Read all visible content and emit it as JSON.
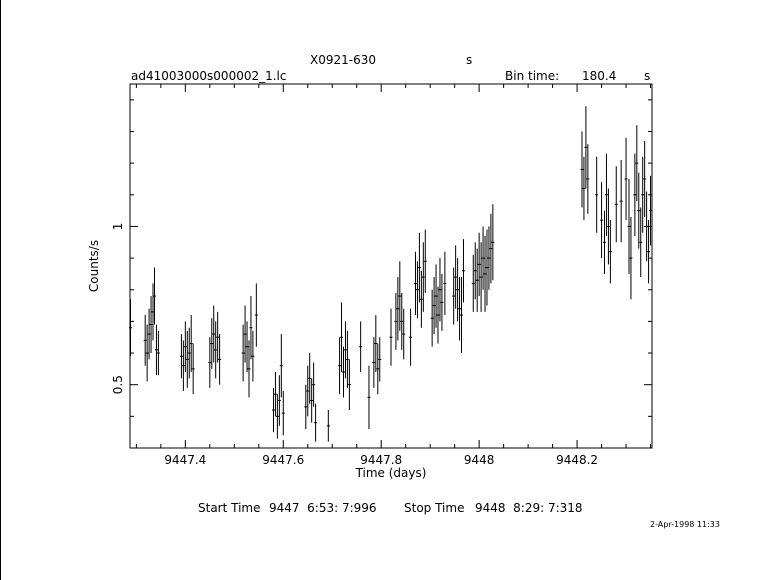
{
  "header": {
    "object": "X0921-630",
    "object_suffix": "s",
    "filename": "ad41003000s000002_1.lc",
    "bin_label": "Bin time:",
    "bin_value": "180.4",
    "bin_unit": "s"
  },
  "footer": {
    "start_label": "Start Time",
    "start_value": "9447  6:53: 7:996",
    "stop_label": "Stop Time",
    "stop_value": "9448  8:29: 7:318",
    "date_stamp": "2-Apr-1998 11:33"
  },
  "chart_data": {
    "type": "scatter",
    "title": "X0921-630",
    "xlabel": "Time (days)",
    "ylabel": "Counts/s",
    "xlim": [
      9447.287,
      9448.353
    ],
    "ylim": [
      0.3,
      1.45
    ],
    "x_ticks": [
      {
        "value": 9447.4,
        "label": "9447.4"
      },
      {
        "value": 9447.6,
        "label": "9447.6"
      },
      {
        "value": 9447.8,
        "label": "9447.8"
      },
      {
        "value": 9448.0,
        "label": "9448"
      },
      {
        "value": 9448.2,
        "label": "9448.2"
      }
    ],
    "y_ticks": [
      {
        "value": 0.5,
        "label": "0.5"
      },
      {
        "value": 1.0,
        "label": "1"
      }
    ],
    "series": [
      {
        "error_bars": true,
        "points": [
          [
            9447.288,
            0.68,
            0.09
          ],
          [
            9447.318,
            0.64,
            0.08
          ],
          [
            9447.322,
            0.6,
            0.09
          ],
          [
            9447.326,
            0.66,
            0.08
          ],
          [
            9447.33,
            0.69,
            0.09
          ],
          [
            9447.334,
            0.73,
            0.09
          ],
          [
            9447.337,
            0.78,
            0.09
          ],
          [
            9447.341,
            0.61,
            0.08
          ],
          [
            9447.345,
            0.6,
            0.07
          ],
          [
            9447.392,
            0.59,
            0.07
          ],
          [
            9447.396,
            0.56,
            0.08
          ],
          [
            9447.4,
            0.62,
            0.08
          ],
          [
            9447.404,
            0.58,
            0.09
          ],
          [
            9447.408,
            0.6,
            0.08
          ],
          [
            9447.412,
            0.63,
            0.09
          ],
          [
            9447.416,
            0.55,
            0.08
          ],
          [
            9447.45,
            0.57,
            0.08
          ],
          [
            9447.454,
            0.63,
            0.08
          ],
          [
            9447.458,
            0.66,
            0.09
          ],
          [
            9447.462,
            0.61,
            0.09
          ],
          [
            9447.466,
            0.65,
            0.08
          ],
          [
            9447.47,
            0.58,
            0.08
          ],
          [
            9447.518,
            0.6,
            0.09
          ],
          [
            9447.522,
            0.66,
            0.09
          ],
          [
            9447.526,
            0.62,
            0.08
          ],
          [
            9447.53,
            0.55,
            0.09
          ],
          [
            9447.534,
            0.68,
            0.1
          ],
          [
            9447.538,
            0.59,
            0.08
          ],
          [
            9447.545,
            0.72,
            0.1
          ],
          [
            9447.58,
            0.42,
            0.07
          ],
          [
            9447.584,
            0.47,
            0.07
          ],
          [
            9447.588,
            0.4,
            0.07
          ],
          [
            9447.592,
            0.45,
            0.08
          ],
          [
            9447.596,
            0.56,
            0.1
          ],
          [
            9447.6,
            0.41,
            0.07
          ],
          [
            9447.646,
            0.43,
            0.07
          ],
          [
            9447.65,
            0.48,
            0.08
          ],
          [
            9447.654,
            0.52,
            0.08
          ],
          [
            9447.658,
            0.45,
            0.07
          ],
          [
            9447.662,
            0.5,
            0.07
          ],
          [
            9447.666,
            0.38,
            0.06
          ],
          [
            9447.692,
            0.37,
            0.05
          ],
          [
            9447.715,
            0.56,
            0.09
          ],
          [
            9447.719,
            0.65,
            0.11
          ],
          [
            9447.723,
            0.54,
            0.08
          ],
          [
            9447.727,
            0.61,
            0.09
          ],
          [
            9447.731,
            0.58,
            0.09
          ],
          [
            9447.735,
            0.5,
            0.08
          ],
          [
            9447.758,
            0.62,
            0.08
          ],
          [
            9447.775,
            0.46,
            0.1
          ],
          [
            9447.785,
            0.57,
            0.08
          ],
          [
            9447.789,
            0.63,
            0.09
          ],
          [
            9447.793,
            0.55,
            0.08
          ],
          [
            9447.797,
            0.58,
            0.07
          ],
          [
            9447.82,
            0.65,
            0.09
          ],
          [
            9447.83,
            0.7,
            0.09
          ],
          [
            9447.834,
            0.74,
            0.1
          ],
          [
            9447.838,
            0.78,
            0.11
          ],
          [
            9447.842,
            0.7,
            0.09
          ],
          [
            9447.846,
            0.66,
            0.08
          ],
          [
            9447.86,
            0.65,
            0.09
          ],
          [
            9447.87,
            0.82,
            0.1
          ],
          [
            9447.874,
            0.8,
            0.09
          ],
          [
            9447.878,
            0.87,
            0.11
          ],
          [
            9447.882,
            0.77,
            0.09
          ],
          [
            9447.886,
            0.84,
            0.11
          ],
          [
            9447.89,
            0.89,
            0.1
          ],
          [
            9447.904,
            0.71,
            0.09
          ],
          [
            9447.908,
            0.75,
            0.09
          ],
          [
            9447.912,
            0.78,
            0.1
          ],
          [
            9447.916,
            0.72,
            0.09
          ],
          [
            9447.92,
            0.8,
            0.1
          ],
          [
            9447.924,
            0.76,
            0.09
          ],
          [
            9447.93,
            0.82,
            0.1
          ],
          [
            9447.948,
            0.78,
            0.09
          ],
          [
            9447.952,
            0.84,
            0.1
          ],
          [
            9447.956,
            0.8,
            0.1
          ],
          [
            9447.96,
            0.74,
            0.1
          ],
          [
            9447.964,
            0.72,
            0.12
          ],
          [
            9447.968,
            0.86,
            0.1
          ],
          [
            9447.988,
            0.82,
            0.09
          ],
          [
            9447.992,
            0.86,
            0.09
          ],
          [
            9447.996,
            0.83,
            0.1
          ],
          [
            9448.0,
            0.88,
            0.1
          ],
          [
            9448.004,
            0.84,
            0.11
          ],
          [
            9448.008,
            0.9,
            0.1
          ],
          [
            9448.012,
            0.85,
            0.12
          ],
          [
            9448.016,
            0.87,
            0.12
          ],
          [
            9448.02,
            0.9,
            0.1
          ],
          [
            9448.024,
            0.93,
            0.11
          ],
          [
            9448.028,
            0.95,
            0.12
          ],
          [
            9448.21,
            1.18,
            0.12
          ],
          [
            9448.214,
            1.12,
            0.1
          ],
          [
            9448.218,
            1.25,
            0.13
          ],
          [
            9448.222,
            1.15,
            0.11
          ],
          [
            9448.24,
            1.1,
            0.12
          ],
          [
            9448.25,
            1.02,
            0.12
          ],
          [
            9448.256,
            0.95,
            0.1
          ],
          [
            9448.26,
            1.1,
            0.13
          ],
          [
            9448.264,
            1.0,
            0.12
          ],
          [
            9448.268,
            0.92,
            0.1
          ],
          [
            9448.28,
            1.07,
            0.12
          ],
          [
            9448.29,
            1.08,
            0.13
          ],
          [
            9448.3,
            1.15,
            0.13
          ],
          [
            9448.306,
            1.0,
            0.15
          ],
          [
            9448.31,
            0.9,
            0.13
          ],
          [
            9448.318,
            1.1,
            0.13
          ],
          [
            9448.322,
            1.2,
            0.12
          ],
          [
            9448.326,
            1.05,
            0.12
          ],
          [
            9448.33,
            0.95,
            0.11
          ],
          [
            9448.334,
            1.1,
            0.12
          ],
          [
            9448.338,
            1.15,
            0.12
          ],
          [
            9448.342,
            1.0,
            0.11
          ],
          [
            9448.346,
            0.92,
            0.1
          ],
          [
            9448.35,
            1.05,
            0.11
          ]
        ]
      }
    ]
  }
}
